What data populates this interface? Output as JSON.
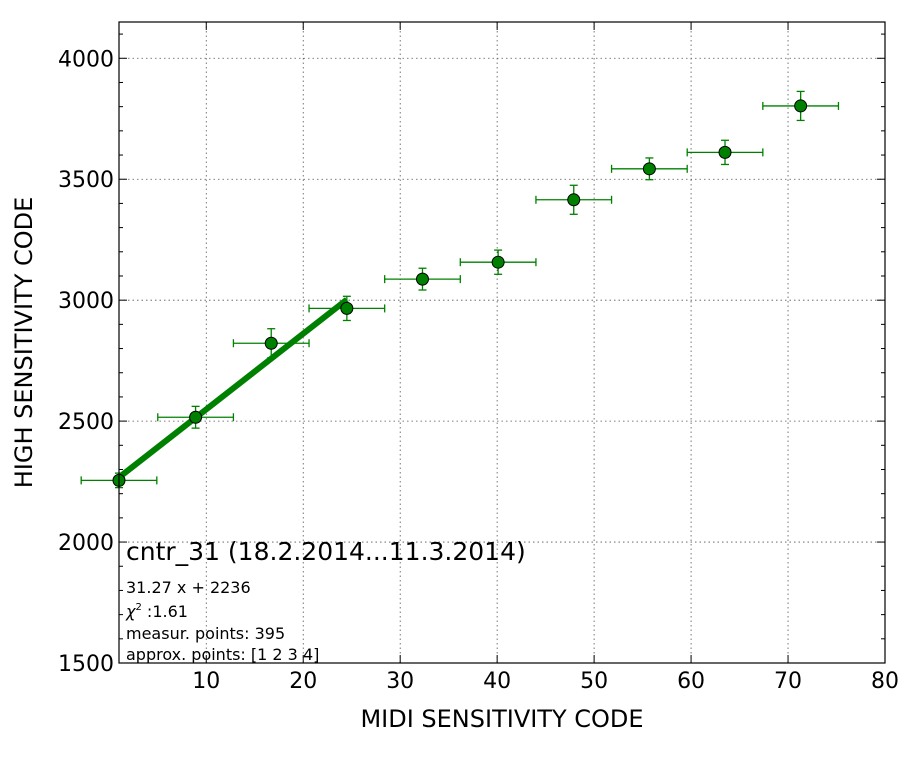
{
  "chart_data": {
    "type": "scatter",
    "title": "cntr_31 (18.2.2014...11.3.2014)",
    "xlabel": "MIDI SENSITIVITY CODE",
    "ylabel": "HIGH SENSITIVITY CODE",
    "xlim": [
      1,
      80
    ],
    "ylim": [
      1500,
      4150
    ],
    "xticks": [
      10,
      20,
      30,
      40,
      50,
      60,
      70,
      80
    ],
    "yticks": [
      1500,
      2000,
      2500,
      3000,
      3500,
      4000
    ],
    "grid": true,
    "series": [
      {
        "color": "#008000",
        "points": [
          {
            "x": 1.0,
            "y": 2255,
            "xerr": 3.9,
            "yerr": 30
          },
          {
            "x": 8.9,
            "y": 2516,
            "xerr": 3.9,
            "yerr": 45
          },
          {
            "x": 16.7,
            "y": 2822,
            "xerr": 3.9,
            "yerr": 60
          },
          {
            "x": 24.5,
            "y": 2966,
            "xerr": 3.9,
            "yerr": 50
          },
          {
            "x": 32.3,
            "y": 3087,
            "xerr": 3.9,
            "yerr": 45
          },
          {
            "x": 40.1,
            "y": 3157,
            "xerr": 3.9,
            "yerr": 50
          },
          {
            "x": 47.9,
            "y": 3415,
            "xerr": 3.9,
            "yerr": 60
          },
          {
            "x": 55.7,
            "y": 3543,
            "xerr": 3.9,
            "yerr": 45
          },
          {
            "x": 63.5,
            "y": 3611,
            "xerr": 3.9,
            "yerr": 50
          },
          {
            "x": 71.3,
            "y": 3803,
            "xerr": 3.9,
            "yerr": 60
          }
        ]
      }
    ],
    "fit_line": {
      "slope": 31.27,
      "intercept": 2236,
      "x_range": [
        1,
        24.5
      ],
      "color": "#008000"
    },
    "annotations": [
      {
        "id": "equation",
        "text": "31.27 x + 2236"
      },
      {
        "id": "chi2",
        "symbol": "χ",
        "sup": "2",
        "text": " :1.61"
      },
      {
        "id": "measured",
        "text": "measur. points: 395"
      },
      {
        "id": "approx",
        "text": "approx. points: [1 2 3 4]"
      }
    ]
  }
}
